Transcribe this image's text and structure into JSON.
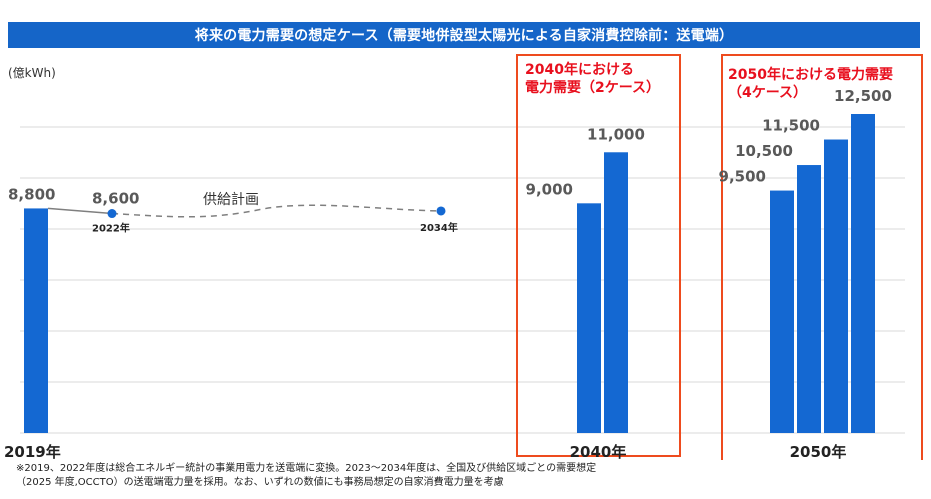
{
  "title": "将来の電力需要の想定ケース（需要地併設型太陽光による自家消費控除前：送電端）",
  "unit_label": "(億kWh)",
  "colors": {
    "bar": "#1468d2",
    "title_bg": "#1565c8",
    "highlight": "#ee4b1e",
    "case_text": "#e8101e"
  },
  "chart_data": {
    "type": "bar",
    "ylim": [
      0,
      13000
    ],
    "grid": true,
    "bars": [
      {
        "group": "2019年",
        "value": 8800,
        "label": "8,800"
      },
      {
        "group": "2040年",
        "value": 9000,
        "label": "9,000"
      },
      {
        "group": "2040年",
        "value": 11000,
        "label": "11,000"
      },
      {
        "group": "2050年",
        "value": 9500,
        "label": "9,500"
      },
      {
        "group": "2050年",
        "value": 10500,
        "label": "10,500"
      },
      {
        "group": "2050年",
        "value": 11500,
        "label": "11,500"
      },
      {
        "group": "2050年",
        "value": 12500,
        "label": "12,500"
      }
    ],
    "supply_plan": {
      "label": "供給計画",
      "points": [
        {
          "x": "2019年",
          "value": 8800
        },
        {
          "x": "2022年",
          "value": 8600,
          "value_label": "8,600",
          "year_label": "2022年"
        },
        {
          "x": "2034年",
          "value": 8700,
          "year_label": "2034年"
        }
      ]
    },
    "x_labels": [
      "2019年",
      "2040年",
      "2050年"
    ],
    "case_labels": {
      "c2040": [
        "2040年における",
        "電力需要（2ケース）"
      ],
      "c2050": [
        "2050年における電力需要",
        "（4ケース）"
      ]
    }
  },
  "footnote": [
    "※2019、2022年度は総合エネルギー統計の事業用電力を送電端に変換。2023～2034年度は、全国及び供給区域ごとの需要想定",
    "（2025 年度,OCCTO）の送電端電力量を採用。なお、いずれの数値にも事務局想定の自家消費電力量を考慮"
  ]
}
